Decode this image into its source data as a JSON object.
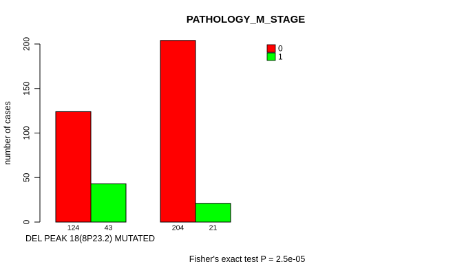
{
  "title": "PATHOLOGY_M_STAGE",
  "footnote": "Fisher's exact test P = 2.5e-05",
  "colors": {
    "series0": "#FF0000",
    "series1": "#00FF00",
    "axis": "#000000",
    "background": "#FFFFFF"
  },
  "legend": {
    "items": [
      {
        "label": "0",
        "color": "#FF0000"
      },
      {
        "label": "1",
        "color": "#00FF00"
      }
    ],
    "position": "inside-top-right"
  },
  "chart_data": {
    "type": "bar",
    "title": "PATHOLOGY_M_STAGE",
    "xlabel": "DEL PEAK 18(8P23.2) MUTATED",
    "ylabel": "number of cases",
    "ylim": [
      0,
      200
    ],
    "yticks": [
      0,
      50,
      100,
      150,
      200
    ],
    "grid": false,
    "legend_position": "inside-top-right",
    "groups": 2,
    "series": [
      {
        "name": "0",
        "color": "#FF0000",
        "values": [
          124,
          204
        ]
      },
      {
        "name": "1",
        "color": "#00FF00",
        "values": [
          43,
          21
        ]
      }
    ],
    "bar_count_labels": [
      [
        "124",
        "43"
      ],
      [
        "204",
        "21"
      ]
    ]
  }
}
